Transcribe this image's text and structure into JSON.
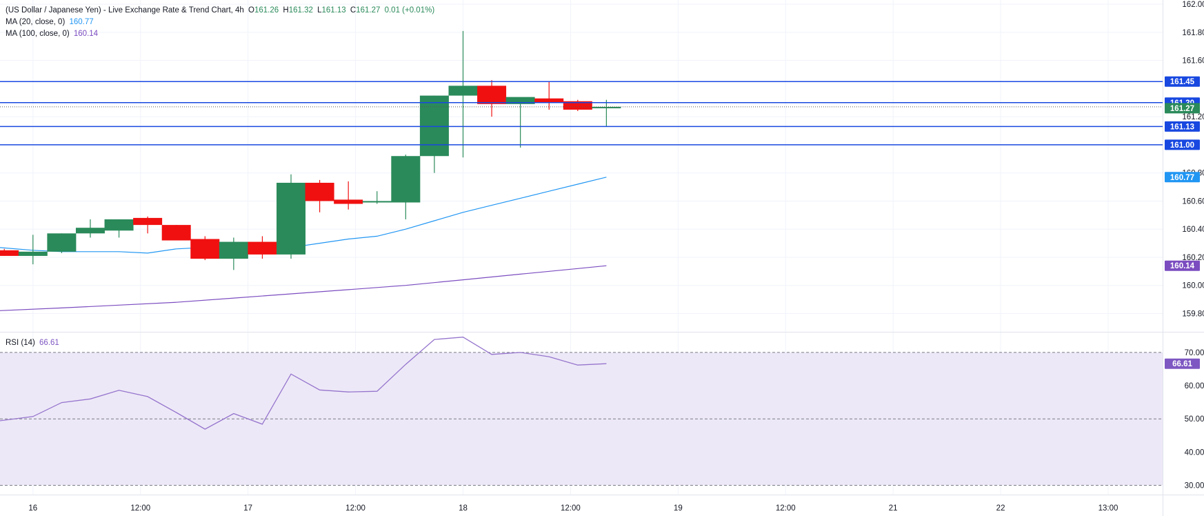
{
  "header": {
    "title": "(US Dollar / Japanese Yen) - Live Exchange Rate & Trend Chart, 4h",
    "open_label": "O",
    "open": "161.26",
    "high_label": "H",
    "high": "161.32",
    "low_label": "L",
    "low": "161.13",
    "close_label": "C",
    "close": "161.27",
    "change": "0.01 (+0.01%)"
  },
  "indicators": {
    "ma20_label": "MA (20, close, 0)",
    "ma20_value": "160.77",
    "ma100_label": "MA (100, close, 0)",
    "ma100_value": "160.14",
    "rsi_label": "RSI (14)",
    "rsi_value": "66.61"
  },
  "colors": {
    "up": "#2a8a5a",
    "down": "#f01010",
    "ma20": "#2196f3",
    "ma100": "#7b4cc0",
    "rsi": "#9575cd",
    "level_line": "#1848e0",
    "rsi_band": "#ede8f7"
  },
  "chart_data": {
    "type": "candlestick",
    "price_axis": {
      "ylim": [
        159.67,
        162.03
      ],
      "ticks": [
        "162.00",
        "161.80",
        "161.60",
        "161.20",
        "160.80",
        "160.60",
        "160.40",
        "160.20",
        "160.00",
        "159.80"
      ]
    },
    "time_axis": {
      "labels": [
        {
          "index": 1,
          "text": "16"
        },
        {
          "index": 4.75,
          "text": "12:00"
        },
        {
          "index": 8.5,
          "text": "17"
        },
        {
          "index": 12.25,
          "text": "12:00"
        },
        {
          "index": 16,
          "text": "18"
        },
        {
          "index": 19.75,
          "text": "12:00"
        },
        {
          "index": 23.5,
          "text": "19"
        },
        {
          "index": 27.25,
          "text": "12:00"
        },
        {
          "index": 31,
          "text": "21"
        },
        {
          "index": 34.75,
          "text": "22"
        },
        {
          "index": 38.5,
          "text": "13:00"
        }
      ],
      "xlim": [
        -0.15,
        40.4
      ]
    },
    "candles": [
      {
        "i": 0,
        "o": 160.25,
        "h": 160.26,
        "l": 160.21,
        "c": 160.21
      },
      {
        "i": 1,
        "o": 160.21,
        "h": 160.36,
        "l": 160.15,
        "c": 160.24
      },
      {
        "i": 2,
        "o": 160.24,
        "h": 160.37,
        "l": 160.23,
        "c": 160.37
      },
      {
        "i": 3,
        "o": 160.37,
        "h": 160.47,
        "l": 160.34,
        "c": 160.41
      },
      {
        "i": 4,
        "o": 160.39,
        "h": 160.47,
        "l": 160.34,
        "c": 160.47
      },
      {
        "i": 5,
        "o": 160.48,
        "h": 160.49,
        "l": 160.37,
        "c": 160.43
      },
      {
        "i": 6,
        "o": 160.43,
        "h": 160.43,
        "l": 160.32,
        "c": 160.32
      },
      {
        "i": 7,
        "o": 160.33,
        "h": 160.35,
        "l": 160.18,
        "c": 160.19
      },
      {
        "i": 8,
        "o": 160.19,
        "h": 160.34,
        "l": 160.11,
        "c": 160.31
      },
      {
        "i": 9,
        "o": 160.31,
        "h": 160.35,
        "l": 160.19,
        "c": 160.22
      },
      {
        "i": 10,
        "o": 160.22,
        "h": 160.79,
        "l": 160.19,
        "c": 160.73
      },
      {
        "i": 11,
        "o": 160.73,
        "h": 160.75,
        "l": 160.52,
        "c": 160.6
      },
      {
        "i": 12,
        "o": 160.61,
        "h": 160.74,
        "l": 160.54,
        "c": 160.58
      },
      {
        "i": 13,
        "o": 160.59,
        "h": 160.67,
        "l": 160.58,
        "c": 160.6
      },
      {
        "i": 14,
        "o": 160.59,
        "h": 160.93,
        "l": 160.47,
        "c": 160.92
      },
      {
        "i": 15,
        "o": 160.92,
        "h": 161.35,
        "l": 160.8,
        "c": 161.35
      },
      {
        "i": 16,
        "o": 161.35,
        "h": 161.81,
        "l": 160.91,
        "c": 161.42
      },
      {
        "i": 17,
        "o": 161.42,
        "h": 161.46,
        "l": 161.2,
        "c": 161.29
      },
      {
        "i": 18,
        "o": 161.29,
        "h": 161.33,
        "l": 160.98,
        "c": 161.34
      },
      {
        "i": 19,
        "o": 161.33,
        "h": 161.45,
        "l": 161.25,
        "c": 161.3
      },
      {
        "i": 20,
        "o": 161.31,
        "h": 161.32,
        "l": 161.24,
        "c": 161.25
      },
      {
        "i": 21,
        "o": 161.26,
        "h": 161.32,
        "l": 161.13,
        "c": 161.27
      }
    ],
    "series": [
      {
        "name": "MA (20, close, 0)",
        "x": [
          -0.2,
          1,
          2,
          3,
          4,
          5,
          6,
          7,
          8,
          9,
          10,
          11,
          12,
          13,
          14,
          15,
          16,
          17,
          18,
          19,
          20,
          21
        ],
        "values": [
          160.27,
          160.25,
          160.24,
          160.24,
          160.24,
          160.23,
          160.26,
          160.27,
          160.26,
          160.26,
          160.27,
          160.3,
          160.33,
          160.35,
          160.4,
          160.46,
          160.52,
          160.57,
          160.62,
          160.67,
          160.72,
          160.77
        ]
      },
      {
        "name": "MA (100, close, 0)",
        "x": [
          -0.2,
          2,
          4,
          6,
          8,
          10,
          12,
          14,
          16,
          18,
          20,
          21
        ],
        "values": [
          159.82,
          159.84,
          159.86,
          159.88,
          159.91,
          159.94,
          159.97,
          160.0,
          160.04,
          160.08,
          160.12,
          160.14
        ]
      }
    ],
    "levels": [
      {
        "value": 161.45,
        "label": "161.45"
      },
      {
        "value": 161.3,
        "label": "161.30"
      },
      {
        "value": 161.13,
        "label": "161.13"
      },
      {
        "value": 161.0,
        "label": "161.00"
      }
    ],
    "last_price": {
      "value": 161.27,
      "label": "161.27"
    },
    "axis_markers": [
      {
        "value": 160.77,
        "label": "160.77",
        "color": "#2196f3"
      },
      {
        "value": 160.14,
        "label": "160.14",
        "color": "#7b4cc0"
      }
    ],
    "rsi": {
      "ylim": [
        27.2,
        76.2
      ],
      "ticks": [
        "70.00",
        "60.00",
        "50.00",
        "40.00",
        "30.00"
      ],
      "band": [
        30,
        70
      ],
      "midline": 50,
      "x": [
        -0.2,
        0,
        1,
        2,
        3,
        4,
        5,
        6,
        7,
        8,
        9,
        10,
        11,
        12,
        13,
        14,
        15,
        16,
        17,
        18,
        19,
        20,
        21
      ],
      "values": [
        49.4,
        49.6,
        50.7,
        54.9,
        56.0,
        58.6,
        56.7,
        51.9,
        46.9,
        51.6,
        48.4,
        63.5,
        58.7,
        58.1,
        58.3,
        66.4,
        73.9,
        74.6,
        69.4,
        70.0,
        68.7,
        66.2,
        66.61
      ],
      "last_label": "66.61"
    }
  }
}
